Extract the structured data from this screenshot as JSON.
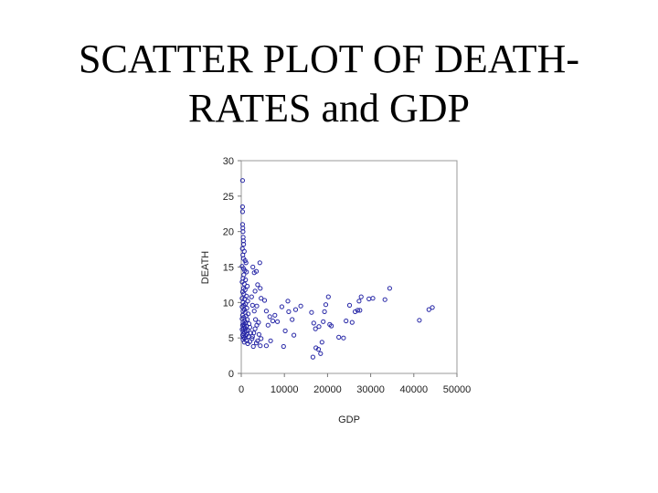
{
  "slide": {
    "title_line1": "SCATTER PLOT OF DEATH-",
    "title_line2": "RATES and GDP"
  },
  "chart_data": {
    "type": "scatter",
    "title": "",
    "xlabel": "GDP",
    "ylabel": "DEATH",
    "xlim": [
      0,
      50000
    ],
    "ylim": [
      0,
      30
    ],
    "x_ticks": [
      0,
      10000,
      20000,
      30000,
      40000,
      50000
    ],
    "y_ticks": [
      0,
      5,
      10,
      15,
      20,
      25,
      30
    ],
    "grid": false,
    "marker": "hollow-circle",
    "marker_color": "#2626a6",
    "points": [
      [
        300,
        27.2
      ],
      [
        300,
        23.5
      ],
      [
        300,
        22.8
      ],
      [
        300,
        21.0
      ],
      [
        350,
        20.5
      ],
      [
        400,
        20.0
      ],
      [
        450,
        19.2
      ],
      [
        500,
        18.7
      ],
      [
        550,
        18.2
      ],
      [
        250,
        17.6
      ],
      [
        700,
        17.2
      ],
      [
        350,
        16.7
      ],
      [
        500,
        16.2
      ],
      [
        900,
        15.9
      ],
      [
        1100,
        15.6
      ],
      [
        200,
        15.1
      ],
      [
        500,
        14.8
      ],
      [
        800,
        14.5
      ],
      [
        1200,
        14.3
      ],
      [
        600,
        13.9
      ],
      [
        400,
        13.4
      ],
      [
        1000,
        13.2
      ],
      [
        200,
        12.9
      ],
      [
        700,
        12.6
      ],
      [
        1400,
        12.3
      ],
      [
        500,
        12.0
      ],
      [
        900,
        11.8
      ],
      [
        300,
        11.5
      ],
      [
        600,
        11.2
      ],
      [
        1200,
        10.9
      ],
      [
        200,
        10.6
      ],
      [
        800,
        10.5
      ],
      [
        1500,
        10.2
      ],
      [
        400,
        10.0
      ],
      [
        1000,
        9.8
      ],
      [
        600,
        9.6
      ],
      [
        200,
        9.4
      ],
      [
        1300,
        9.2
      ],
      [
        700,
        9.0
      ],
      [
        400,
        8.8
      ],
      [
        900,
        8.6
      ],
      [
        1600,
        8.4
      ],
      [
        300,
        8.2
      ],
      [
        1100,
        8.1
      ],
      [
        600,
        7.9
      ],
      [
        200,
        7.7
      ],
      [
        1400,
        7.6
      ],
      [
        800,
        7.4
      ],
      [
        400,
        7.2
      ],
      [
        1000,
        7.1
      ],
      [
        1800,
        7.0
      ],
      [
        600,
        6.9
      ],
      [
        300,
        6.8
      ],
      [
        1200,
        6.7
      ],
      [
        700,
        6.6
      ],
      [
        2000,
        6.5
      ],
      [
        500,
        6.4
      ],
      [
        900,
        6.3
      ],
      [
        200,
        6.2
      ],
      [
        1500,
        6.1
      ],
      [
        1100,
        6.0
      ],
      [
        400,
        5.9
      ],
      [
        800,
        5.8
      ],
      [
        2200,
        5.7
      ],
      [
        600,
        5.6
      ],
      [
        1300,
        5.5
      ],
      [
        300,
        5.4
      ],
      [
        1000,
        5.3
      ],
      [
        1700,
        5.2
      ],
      [
        500,
        5.1
      ],
      [
        800,
        5.0
      ],
      [
        2500,
        4.9
      ],
      [
        400,
        4.8
      ],
      [
        1200,
        4.6
      ],
      [
        700,
        4.4
      ],
      [
        1500,
        4.2
      ],
      [
        2000,
        4.5
      ],
      [
        2600,
        5.2
      ],
      [
        2900,
        5.7
      ],
      [
        3200,
        6.3
      ],
      [
        3600,
        6.8
      ],
      [
        4000,
        7.2
      ],
      [
        3300,
        7.6
      ],
      [
        4100,
        5.5
      ],
      [
        4600,
        4.9
      ],
      [
        3800,
        4.6
      ],
      [
        3500,
        4.3
      ],
      [
        4400,
        3.9
      ],
      [
        2800,
        3.8
      ],
      [
        3000,
        14.2
      ],
      [
        3500,
        14.4
      ],
      [
        4300,
        15.6
      ],
      [
        3800,
        12.5
      ],
      [
        4400,
        12.0
      ],
      [
        3200,
        11.6
      ],
      [
        4600,
        10.6
      ],
      [
        3600,
        9.5
      ],
      [
        2600,
        9.6
      ],
      [
        3000,
        8.8
      ],
      [
        2400,
        10.8
      ],
      [
        2700,
        15.0
      ],
      [
        5400,
        10.3
      ],
      [
        5800,
        8.8
      ],
      [
        6600,
        8.0
      ],
      [
        7300,
        7.4
      ],
      [
        6200,
        6.8
      ],
      [
        8400,
        7.3
      ],
      [
        7800,
        8.2
      ],
      [
        6800,
        4.6
      ],
      [
        5800,
        3.9
      ],
      [
        9800,
        3.8
      ],
      [
        9400,
        9.4
      ],
      [
        10800,
        10.2
      ],
      [
        11000,
        8.7
      ],
      [
        11800,
        7.6
      ],
      [
        10200,
        6.0
      ],
      [
        12200,
        5.4
      ],
      [
        12600,
        9.0
      ],
      [
        13800,
        9.5
      ],
      [
        16300,
        8.6
      ],
      [
        16800,
        7.1
      ],
      [
        17200,
        6.3
      ],
      [
        16600,
        2.3
      ],
      [
        17300,
        3.6
      ],
      [
        17900,
        3.4
      ],
      [
        18400,
        2.8
      ],
      [
        18700,
        4.4
      ],
      [
        18000,
        6.6
      ],
      [
        19000,
        7.3
      ],
      [
        19300,
        8.7
      ],
      [
        19600,
        9.7
      ],
      [
        20200,
        10.8
      ],
      [
        20500,
        6.9
      ],
      [
        20900,
        6.7
      ],
      [
        22600,
        5.1
      ],
      [
        23700,
        5.0
      ],
      [
        24300,
        7.4
      ],
      [
        25100,
        9.6
      ],
      [
        25700,
        7.2
      ],
      [
        26400,
        8.7
      ],
      [
        27000,
        8.9
      ],
      [
        27500,
        8.9
      ],
      [
        27300,
        10.2
      ],
      [
        27800,
        10.8
      ],
      [
        29600,
        10.5
      ],
      [
        30500,
        10.6
      ],
      [
        33300,
        10.4
      ],
      [
        34400,
        12.0
      ],
      [
        41300,
        7.5
      ],
      [
        43500,
        9.0
      ],
      [
        44300,
        9.3
      ]
    ]
  }
}
